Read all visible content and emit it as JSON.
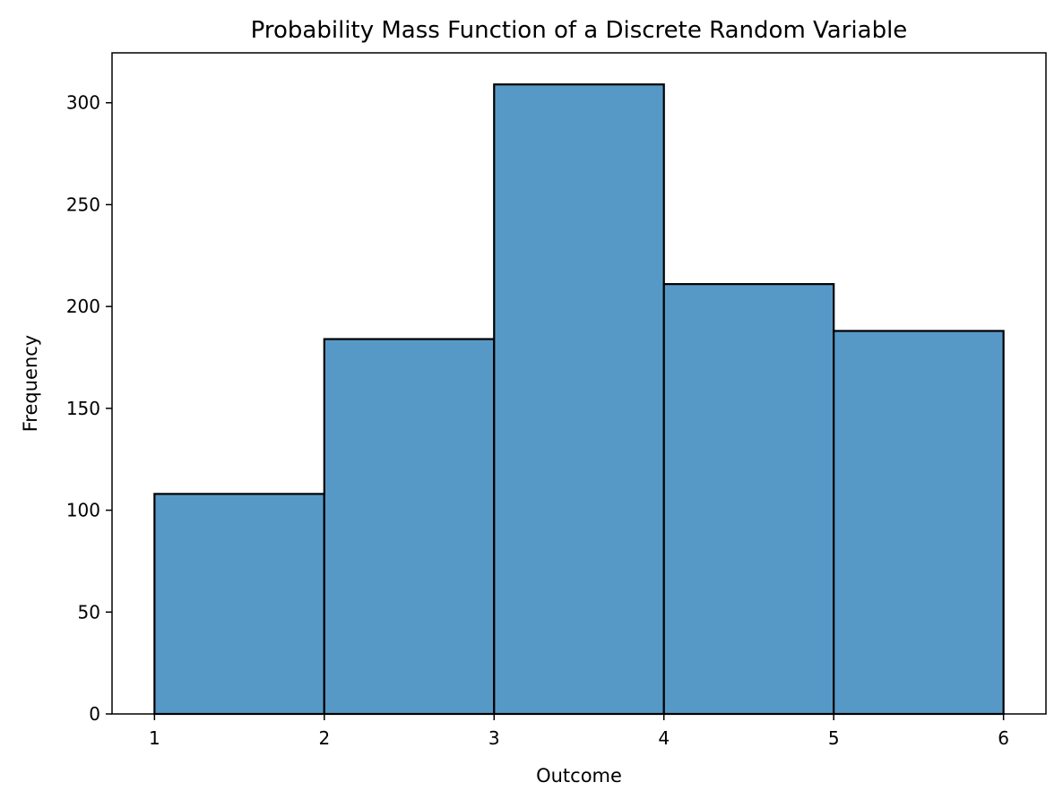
{
  "chart_data": {
    "type": "bar",
    "title": "Probability Mass Function of a Discrete Random Variable",
    "xlabel": "Outcome",
    "ylabel": "Frequency",
    "bins": [
      {
        "start": 1,
        "end": 2,
        "value": 108
      },
      {
        "start": 2,
        "end": 3,
        "value": 184
      },
      {
        "start": 3,
        "end": 4,
        "value": 309
      },
      {
        "start": 4,
        "end": 5,
        "value": 211
      },
      {
        "start": 5,
        "end": 6,
        "value": 188
      }
    ],
    "xlim": [
      0.75,
      6.25
    ],
    "ylim": [
      0,
      324.5
    ],
    "xticks": [
      1,
      2,
      3,
      4,
      5,
      6
    ],
    "yticks": [
      0,
      50,
      100,
      150,
      200,
      250,
      300
    ],
    "grid": false,
    "legend": "none",
    "colors": {
      "bar_fill": "#5799c6",
      "bar_edge": "#000000",
      "axis": "#000000"
    }
  }
}
